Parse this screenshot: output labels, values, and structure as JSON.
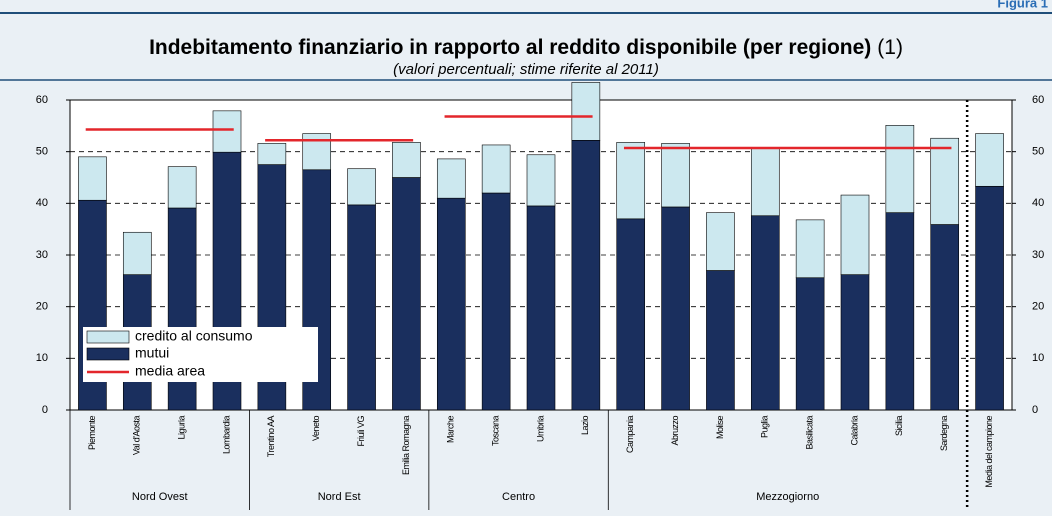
{
  "header": {
    "figure": "Figura 1"
  },
  "chart_data": {
    "type": "stacked-bar",
    "title": "Indebitamento finanziario in rapporto al reddito disponibile (per regione)",
    "title_note": "(1)",
    "subtitle": "(valori percentuali; stime riferite al 2011)",
    "groups": [
      {
        "name": "Nord Ovest",
        "categories": [
          "Piemonte",
          "Val d'Aosta",
          "Liguria",
          "Lombardia"
        ],
        "mean": 54.3
      },
      {
        "name": "Nord Est",
        "categories": [
          "Trentino AA",
          "Veneto",
          "Friuli VG",
          "Emilia Romagna"
        ],
        "mean": 52.2
      },
      {
        "name": "Centro",
        "categories": [
          "Marche",
          "Toscana",
          "Umbria",
          "Lazio"
        ],
        "mean": 56.8
      },
      {
        "name": "Mezzogiorno",
        "categories": [
          "Campania",
          "Abruzzo",
          "Molise",
          "Puglia",
          "Basilicata",
          "Calabria",
          "Sicilia",
          "Sardegna"
        ],
        "mean": 50.7
      },
      {
        "name": null,
        "categories": [
          "Media del campione"
        ],
        "mean": null
      }
    ],
    "series": [
      {
        "name": "mutui",
        "color": "#1a2f5e",
        "values": [
          40.6,
          26.2,
          39.1,
          49.9,
          47.5,
          46.5,
          39.7,
          45.0,
          41.0,
          42.0,
          39.5,
          52.2,
          37.0,
          39.3,
          27.0,
          37.6,
          25.6,
          26.2,
          38.2,
          35.9,
          43.3
        ]
      },
      {
        "name": "credito al consumo",
        "color": "#cce8ef",
        "values": [
          8.4,
          8.2,
          8.0,
          8.0,
          4.1,
          7.0,
          7.0,
          6.8,
          7.6,
          9.3,
          9.9,
          11.2,
          14.8,
          12.3,
          11.2,
          13.1,
          11.2,
          15.4,
          16.9,
          16.7,
          10.2
        ]
      }
    ],
    "mean_series": {
      "name": "media area",
      "color": "#e3262b"
    },
    "ylim": [
      0,
      60
    ],
    "yticks": [
      0,
      10,
      20,
      30,
      40,
      50,
      60
    ],
    "grid": true
  }
}
